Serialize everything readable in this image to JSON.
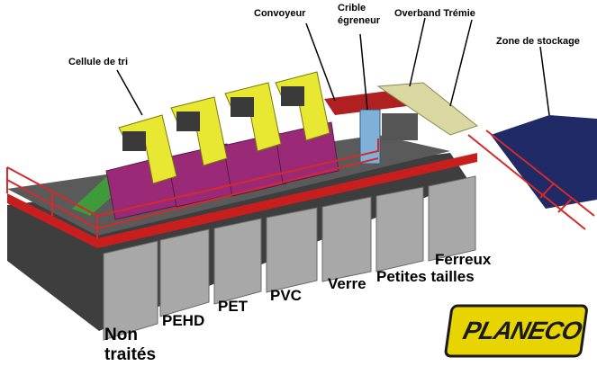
{
  "callouts": {
    "cellule": "Cellule de tri",
    "convoyeur": "Convoyeur",
    "crible_line1": "Crible",
    "crible_line2": "égreneur",
    "overband": "Overband Trémie",
    "zone": "Zone de stockage"
  },
  "bins": {
    "non_line1": "Non",
    "non_line2": "traités",
    "pehd": "PEHD",
    "pet": "PET",
    "pvc": "PVC",
    "verre": "Verre",
    "petites": "Petites tailles",
    "ferreux": "Ferreux"
  },
  "logo": {
    "text": "PLANECO"
  },
  "colors": {
    "platform_side": "#c81e1e",
    "platform_top": "#5a5a5a",
    "railing": "#d42a2a",
    "sorting_cell": "#e8e832",
    "hopper": "#9a2a78",
    "chute": "#3f9a3a",
    "storage": "#1f2a66",
    "pillar": "#a8a8a8",
    "logo_bg": "#e8d400"
  }
}
